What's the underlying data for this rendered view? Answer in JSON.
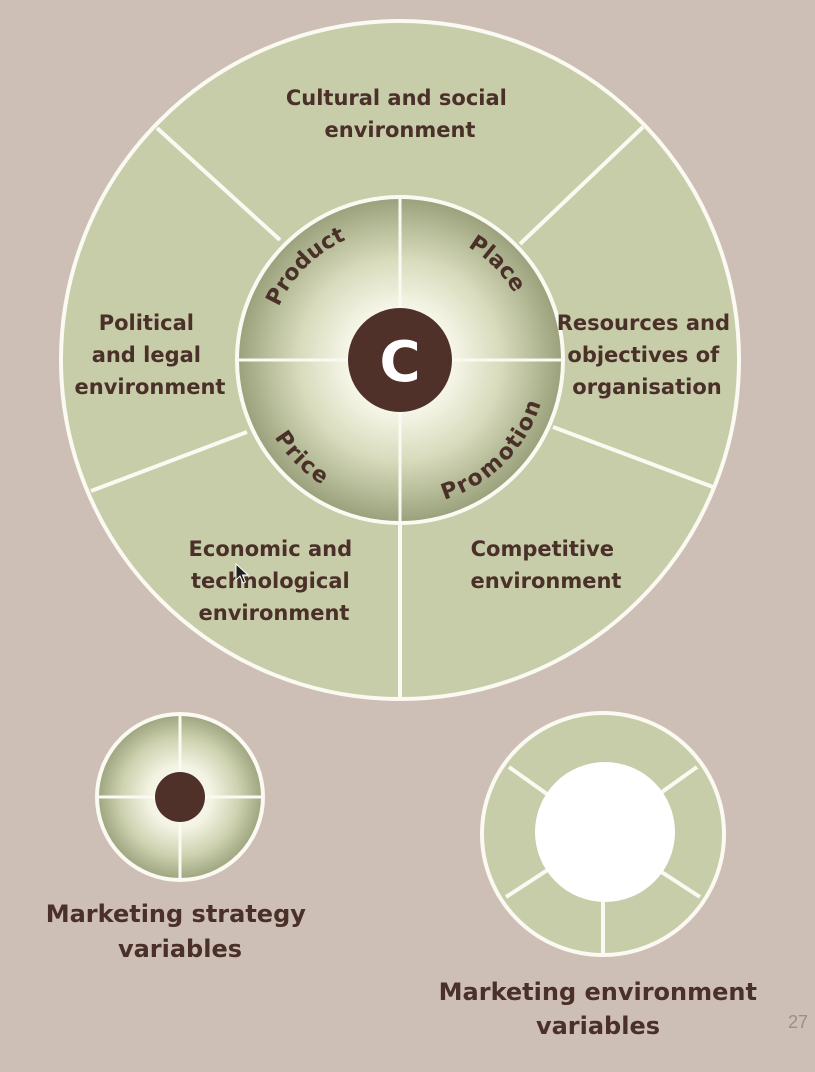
{
  "center": {
    "label": "C"
  },
  "marketing_mix": [
    {
      "key": "product",
      "label": "Product"
    },
    {
      "key": "place",
      "label": "Place"
    },
    {
      "key": "price",
      "label": "Price"
    },
    {
      "key": "promotion",
      "label": "Promotion"
    }
  ],
  "environment": [
    {
      "key": "cultural",
      "lines": [
        "Cultural and social",
        "environment"
      ]
    },
    {
      "key": "resources",
      "lines": [
        "Resources and",
        "objectives of",
        "organisation"
      ]
    },
    {
      "key": "competitive",
      "lines": [
        "Competitive",
        "environment"
      ]
    },
    {
      "key": "economic",
      "lines": [
        "Economic and",
        "technological",
        "environment"
      ]
    },
    {
      "key": "political",
      "lines": [
        "Political",
        "and legal",
        "environment"
      ]
    }
  ],
  "legend": {
    "strategy": {
      "lines": [
        "Marketing strategy",
        "variables"
      ]
    },
    "environment": {
      "lines": [
        "Marketing environment",
        "variables"
      ]
    }
  },
  "page_number": "27",
  "colors": {
    "background": "#cdbfb6",
    "segment_fill": "#c7cca9",
    "divider": "#fbfaf2",
    "center_fill": "#4f3129",
    "label_text": "#4a3028"
  }
}
